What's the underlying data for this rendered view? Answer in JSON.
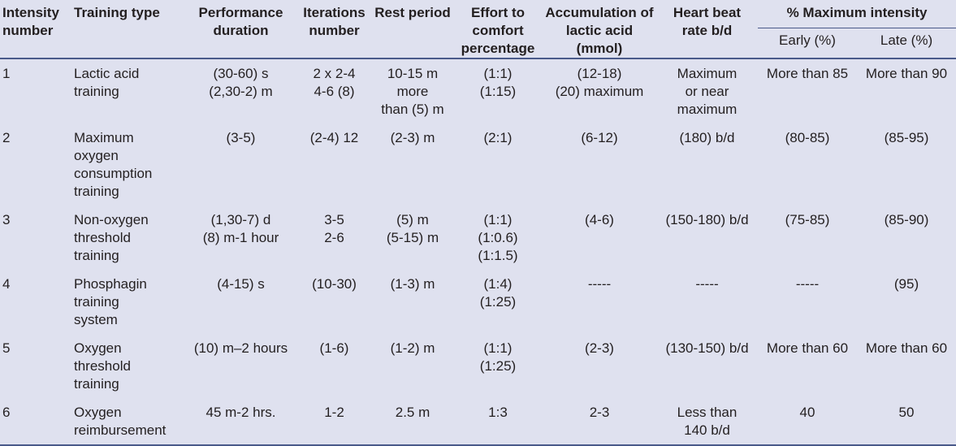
{
  "headers": {
    "intensity": "Intensity number",
    "training_type": "Training type",
    "duration": "Performance duration",
    "iterations": "Iterations number",
    "rest": "Rest period",
    "effort": "Effort to comfort percentage",
    "lactic": "Accumulation of lactic acid (mmol)",
    "heart": "Heart beat rate b/d",
    "max_intensity": "% Maximum intensity",
    "early": "Early (%)",
    "late": "Late (%)"
  },
  "rows": [
    {
      "num": "1",
      "type": "Lactic acid\ntraining",
      "duration": "(30-60) s\n(2,30-2) m",
      "iterations": "2 x 2-4\n4-6 (8)",
      "rest": "10-15 m\nmore\nthan (5) m",
      "effort": "(1:1)\n(1:15)",
      "lactic": "(12-18)\n(20) maximum",
      "heart": "Maximum\nor near\nmaximum",
      "early": "More than 85",
      "late": "More than 90"
    },
    {
      "num": "2",
      "type": "Maximum\noxygen\nconsumption\ntraining",
      "duration": "(3-5)",
      "iterations": "(2-4) 12",
      "rest": "(2-3) m",
      "effort": "(2:1)",
      "lactic": "(6-12)",
      "heart": "(180) b/d",
      "early": "(80-85)",
      "late": "(85-95)"
    },
    {
      "num": "3",
      "type": "Non-oxygen\nthreshold\ntraining",
      "duration": "(1,30-7) d\n(8) m-1 hour",
      "iterations": "3-5\n2-6",
      "rest": "(5) m\n(5-15) m",
      "effort": "(1:1)\n(1:0.6)\n(1:1.5)",
      "lactic": "(4-6)",
      "heart": "(150-180) b/d",
      "early": "(75-85)",
      "late": "(85-90)"
    },
    {
      "num": "4",
      "type": "Phosphagin\ntraining\nsystem",
      "duration": "(4-15) s",
      "iterations": "(10-30)",
      "rest": "(1-3) m",
      "effort": "(1:4)\n(1:25)",
      "lactic": "-----",
      "heart": "-----",
      "early": "-----",
      "late": "(95)"
    },
    {
      "num": "5",
      "type": "Oxygen\nthreshold\ntraining",
      "duration": "(10) m–2 hours",
      "iterations": "(1-6)",
      "rest": "(1-2) m",
      "effort": "(1:1)\n(1:25)",
      "lactic": "(2-3)",
      "heart": "(130-150) b/d",
      "early": "More than 60",
      "late": "More than 60"
    },
    {
      "num": "6",
      "type": "Oxygen\nreimbursement",
      "duration": "45 m-2 hrs.",
      "iterations": "1-2",
      "rest": "2.5 m",
      "effort": "1:3",
      "lactic": "2-3",
      "heart": "Less than\n140 b/d",
      "early": "40",
      "late": "50"
    }
  ]
}
